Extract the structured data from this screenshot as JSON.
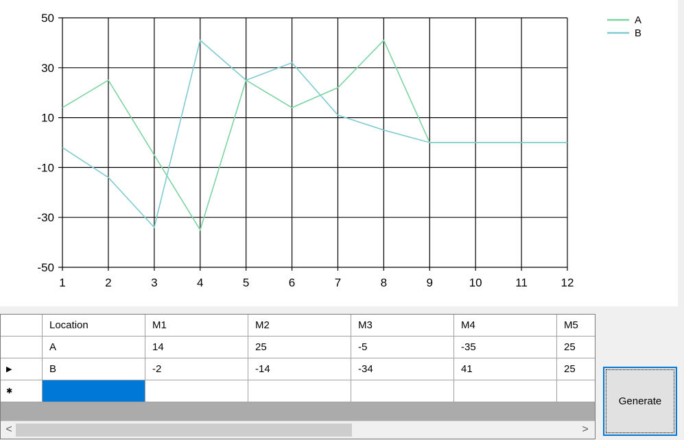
{
  "chart_data": {
    "type": "line",
    "x": [
      1,
      2,
      3,
      4,
      5,
      6,
      7,
      8,
      9,
      10,
      11,
      12
    ],
    "xlim": [
      1,
      12
    ],
    "ylim": [
      -50,
      50
    ],
    "yticks": [
      -50,
      -30,
      -10,
      10,
      30,
      50
    ],
    "xticks": [
      1,
      2,
      3,
      4,
      5,
      6,
      7,
      8,
      9,
      10,
      11,
      12
    ],
    "grid": true,
    "legend_position": "top-right",
    "series": [
      {
        "name": "A",
        "color": "#7dd3a2",
        "values": [
          14,
          25,
          -5,
          -35,
          25,
          14,
          22,
          41,
          0,
          0,
          0,
          0
        ]
      },
      {
        "name": "B",
        "color": "#7ecad0",
        "values": [
          -2,
          -14,
          -34,
          41,
          25,
          32,
          11,
          5,
          0,
          0,
          0,
          0
        ]
      }
    ]
  },
  "grid": {
    "columns": [
      "Location",
      "M1",
      "M2",
      "M3",
      "M4",
      "M5"
    ],
    "rows": [
      [
        "A",
        "14",
        "25",
        "-5",
        "-35",
        "25"
      ],
      [
        "B",
        "-2",
        "-14",
        "-34",
        "41",
        "25"
      ]
    ],
    "current_row_marker": "▶",
    "new_row_marker": "✱"
  },
  "scroll": {
    "left_arrow": "<",
    "right_arrow": ">"
  },
  "generate_label": "Generate"
}
